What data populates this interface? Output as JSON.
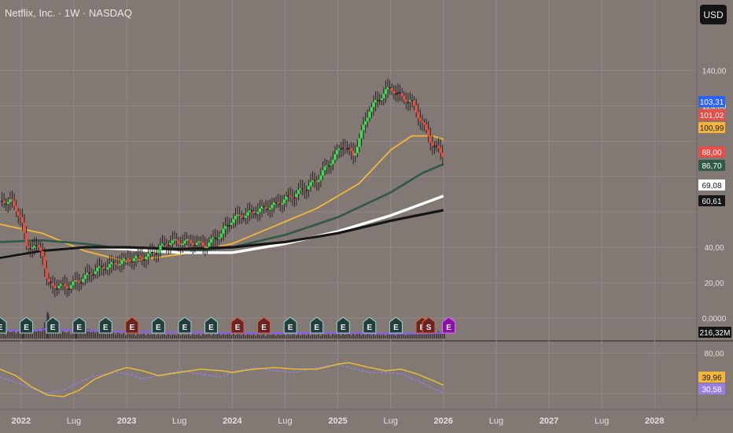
{
  "header": {
    "title": "Netflix, Inc. · 1W · NASDAQ",
    "currency_button": "USD"
  },
  "colors": {
    "background": "#827874",
    "grid": "#938986",
    "axis_text": "#e6dfdb",
    "bull_candle": "#2ee24a",
    "bear_candle": "#e84d46",
    "neutral_candle": "#2a2222",
    "ma_yellow": "#f4b63a",
    "ma_green": "#2f5a45",
    "ma_white": "#ffffff",
    "ma_black": "#161616",
    "volume": "#3e3636",
    "volume_line": "#8a5cf0",
    "rsi_yellow": "#f0c030",
    "rsi_purple": "#9a7ee8",
    "earnings_teal": "#233e3c",
    "earnings_red": "#6a2424",
    "earnings_purple": "#8a10a8"
  },
  "price_axis": {
    "ticks": [
      "140,00",
      "120,00",
      "40,00",
      "20,00",
      "0,0000"
    ],
    "tick_values": [
      140,
      120,
      40,
      20,
      0
    ]
  },
  "rsi_axis": {
    "ticks": [
      "80,00"
    ],
    "tick_values": [
      80
    ]
  },
  "time_axis": {
    "labels": [
      "2022",
      "Lug",
      "2023",
      "Lug",
      "2024",
      "Lug",
      "2025",
      "Lug",
      "2026",
      "Lug",
      "2027",
      "Lug",
      "2028"
    ],
    "values": [
      2022.0,
      2022.5,
      2023.0,
      2023.5,
      2024.0,
      2024.5,
      2025.0,
      2025.5,
      2026.0,
      2026.5,
      2027.0,
      2027.5,
      2028.0
    ],
    "bold": [
      true,
      false,
      true,
      false,
      true,
      false,
      true,
      false,
      true,
      false,
      true,
      false,
      true
    ]
  },
  "price_badges": [
    {
      "text": "103,31",
      "value": 103.31,
      "bg": "#2962ff",
      "fg": "#ffffff"
    },
    {
      "text": "101,02",
      "value": 101.02,
      "bg": "#e84d46",
      "fg": "#ffffff"
    },
    {
      "text": "100,99",
      "value": 100.99,
      "bg": "#f4b63a",
      "fg": "#1a1a1a"
    },
    {
      "text": "88,00",
      "value": 88.0,
      "bg": "#e84d46",
      "fg": "#ffffff"
    },
    {
      "text": "86,70",
      "value": 86.7,
      "bg": "#2f5a45",
      "fg": "#ffffff"
    },
    {
      "text": "69,08",
      "value": 69.08,
      "bg": "#ffffff",
      "fg": "#1a1a1a"
    },
    {
      "text": "60,61",
      "value": 60.61,
      "bg": "#161616",
      "fg": "#ffffff"
    }
  ],
  "volume_badge": {
    "text": "216,32M",
    "bg": "#141414",
    "fg": "#ffffff"
  },
  "rsi_badges": [
    {
      "text": "39,96",
      "value": 39.96,
      "bg": "#f4b63a",
      "fg": "#1a1a1a"
    },
    {
      "text": "30,58",
      "value": 30.58,
      "bg": "#9a7ee8",
      "fg": "#ffffff"
    }
  ],
  "earnings_markers": [
    {
      "t": 2021.8,
      "label": "E",
      "kind": "teal"
    },
    {
      "t": 2022.05,
      "label": "E",
      "kind": "teal"
    },
    {
      "t": 2022.3,
      "label": "E",
      "kind": "teal"
    },
    {
      "t": 2022.55,
      "label": "E",
      "kind": "teal"
    },
    {
      "t": 2022.8,
      "label": "E",
      "kind": "teal"
    },
    {
      "t": 2023.05,
      "label": "E",
      "kind": "red"
    },
    {
      "t": 2023.3,
      "label": "E",
      "kind": "teal"
    },
    {
      "t": 2023.55,
      "label": "E",
      "kind": "teal"
    },
    {
      "t": 2023.8,
      "label": "E",
      "kind": "teal"
    },
    {
      "t": 2024.05,
      "label": "E",
      "kind": "red"
    },
    {
      "t": 2024.3,
      "label": "E",
      "kind": "red"
    },
    {
      "t": 2024.55,
      "label": "E",
      "kind": "teal"
    },
    {
      "t": 2024.8,
      "label": "E",
      "kind": "teal"
    },
    {
      "t": 2025.05,
      "label": "E",
      "kind": "teal"
    },
    {
      "t": 2025.3,
      "label": "E",
      "kind": "teal"
    },
    {
      "t": 2025.55,
      "label": "E",
      "kind": "teal"
    },
    {
      "t": 2025.8,
      "label": "E",
      "kind": "red"
    },
    {
      "t": 2025.86,
      "label": "S",
      "kind": "red"
    },
    {
      "t": 2026.05,
      "label": "E",
      "kind": "purple"
    }
  ],
  "chart_data": {
    "type": "line",
    "title": "Netflix, Inc. · 1W · NASDAQ",
    "xlabel": "",
    "ylabel": "",
    "xlim": [
      2021.8,
      2028.4
    ],
    "ylim": [
      -8,
      162
    ],
    "grid": true,
    "price_series": {
      "name": "",
      "x": [
        2021.8,
        2021.9,
        2022.0,
        2022.05,
        2022.1,
        2022.2,
        2022.25,
        2022.35,
        2022.45,
        2022.55,
        2022.7,
        2022.85,
        2023.0,
        2023.2,
        2023.4,
        2023.6,
        2023.75,
        2023.9,
        2024.0,
        2024.2,
        2024.4,
        2024.6,
        2024.8,
        2024.95,
        2025.05,
        2025.15,
        2025.3,
        2025.45,
        2025.5,
        2025.6,
        2025.7,
        2025.8,
        2025.9,
        2026.0
      ],
      "y": [
        66,
        66,
        57,
        40,
        41,
        38,
        19,
        18,
        18,
        21,
        27,
        30,
        33,
        35,
        43,
        43,
        41,
        48,
        56,
        60,
        64,
        70,
        78,
        90,
        98,
        92,
        118,
        128,
        130,
        125,
        122,
        110,
        98,
        92
      ]
    },
    "candles_note": "weekly OHLC bars derived from price_series",
    "ma_series": [
      {
        "name": "",
        "color": "#f4b63a",
        "x": [
          2021.8,
          2022.2,
          2022.6,
          2023.0,
          2023.5,
          2024.0,
          2024.4,
          2024.8,
          2025.2,
          2025.5,
          2025.7,
          2025.9,
          2026.0
        ],
        "y": [
          53,
          48,
          38,
          32,
          36,
          42,
          52,
          62,
          76,
          95,
          103,
          103,
          101
        ]
      },
      {
        "name": "",
        "color": "#2f5a45",
        "x": [
          2021.8,
          2022.2,
          2022.6,
          2023.0,
          2023.5,
          2024.0,
          2024.5,
          2025.0,
          2025.5,
          2025.8,
          2026.0
        ],
        "y": [
          43,
          44,
          42,
          39,
          37,
          40,
          47,
          57,
          71,
          82,
          87
        ]
      },
      {
        "name": "",
        "color": "#ffffff",
        "x": [
          2021.8,
          2022.2,
          2022.6,
          2023.0,
          2023.5,
          2024.0,
          2024.5,
          2025.0,
          2025.5,
          2026.0
        ],
        "y": [
          34,
          38,
          40,
          39,
          37,
          37,
          42,
          49,
          58,
          69
        ]
      },
      {
        "name": "",
        "color": "#161616",
        "x": [
          2021.8,
          2022.2,
          2022.6,
          2023.0,
          2023.5,
          2024.0,
          2024.5,
          2025.0,
          2025.5,
          2026.0
        ],
        "y": [
          34,
          38,
          40,
          40,
          39,
          40,
          43,
          48,
          55,
          61
        ]
      }
    ],
    "volume": {
      "x": [
        2021.85,
        2021.9,
        2022.0,
        2022.02,
        2022.1,
        2022.2,
        2022.25,
        2022.35,
        2022.5,
        2022.52,
        2022.7,
        2022.8,
        2023.0,
        2023.2,
        2023.4,
        2023.6,
        2023.8,
        2024.0,
        2024.2,
        2024.4,
        2024.6,
        2024.8,
        2025.0,
        2025.2,
        2025.4,
        2025.6,
        2025.8,
        2026.0
      ],
      "v": [
        12,
        14,
        15,
        22,
        16,
        18,
        48,
        14,
        12,
        26,
        14,
        12,
        10,
        9,
        8,
        8,
        9,
        9,
        8,
        8,
        8,
        8,
        9,
        9,
        8,
        9,
        12,
        14
      ],
      "line": [
        15,
        15,
        14,
        14,
        14,
        16,
        18,
        16,
        15,
        15,
        14,
        13,
        12,
        12,
        11,
        11,
        11,
        10,
        10,
        10,
        10,
        10,
        10,
        10,
        9,
        9,
        9,
        10
      ]
    },
    "rsi": {
      "x": [
        2021.8,
        2021.95,
        2022.1,
        2022.25,
        2022.4,
        2022.55,
        2022.7,
        2022.9,
        2023.0,
        2023.15,
        2023.3,
        2023.5,
        2023.7,
        2023.9,
        2024.0,
        2024.2,
        2024.4,
        2024.6,
        2024.8,
        2025.0,
        2025.1,
        2025.3,
        2025.45,
        2025.6,
        2025.75,
        2025.9,
        2026.0
      ],
      "yellow": [
        60,
        52,
        38,
        28,
        26,
        34,
        48,
        58,
        62,
        58,
        52,
        56,
        60,
        58,
        56,
        60,
        62,
        60,
        60,
        66,
        68,
        62,
        58,
        60,
        54,
        46,
        40
      ],
      "purple": [
        50,
        44,
        36,
        30,
        34,
        44,
        52,
        56,
        54,
        48,
        52,
        58,
        54,
        50,
        56,
        62,
        58,
        56,
        62,
        66,
        62,
        56,
        56,
        54,
        46,
        36,
        31
      ],
      "ylim": [
        20,
        90
      ]
    }
  }
}
